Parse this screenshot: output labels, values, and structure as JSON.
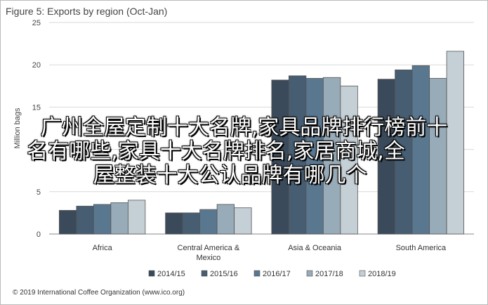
{
  "figure": {
    "title": "Figure 5: Exports by region (Oct-Jan)",
    "source": "© 2019 International Coffee Organization (www.ico.org)"
  },
  "overlay": {
    "lines": [
      "广州全屋定制十大名牌,家具品牌排行榜前十",
      "名有哪些,家具十大名牌排名,家居商城,全",
      "屋整装十大公认品牌有哪几个"
    ]
  },
  "chart_data": {
    "type": "bar",
    "title": "Figure 5: Exports by region (Oct-Jan)",
    "xlabel": "",
    "ylabel": "Million bags",
    "ylim": [
      0,
      25
    ],
    "yticks": [
      0,
      5,
      10,
      15,
      20,
      25
    ],
    "grid": true,
    "legend_position": "bottom",
    "categories": [
      "Africa",
      "Central America & Mexico",
      "Asia & Oceania",
      "South America"
    ],
    "category_lines": [
      [
        "Africa"
      ],
      [
        "Central America &",
        "Mexico"
      ],
      [
        "Asia & Oceania"
      ],
      [
        "South America"
      ]
    ],
    "series": [
      {
        "name": "2014/15",
        "color": "#3a4a5a",
        "values": [
          2.8,
          2.5,
          18.2,
          18.3
        ]
      },
      {
        "name": "2015/16",
        "color": "#465d72",
        "values": [
          3.3,
          2.5,
          18.7,
          19.4
        ]
      },
      {
        "name": "2016/17",
        "color": "#5a7790",
        "values": [
          3.5,
          2.9,
          18.4,
          19.9
        ]
      },
      {
        "name": "2017/18",
        "color": "#98abb8",
        "values": [
          3.7,
          3.5,
          18.5,
          18.4
        ]
      },
      {
        "name": "2018/19",
        "color": "#c4cfd6",
        "values": [
          4.0,
          3.1,
          17.5,
          21.6
        ]
      }
    ]
  }
}
